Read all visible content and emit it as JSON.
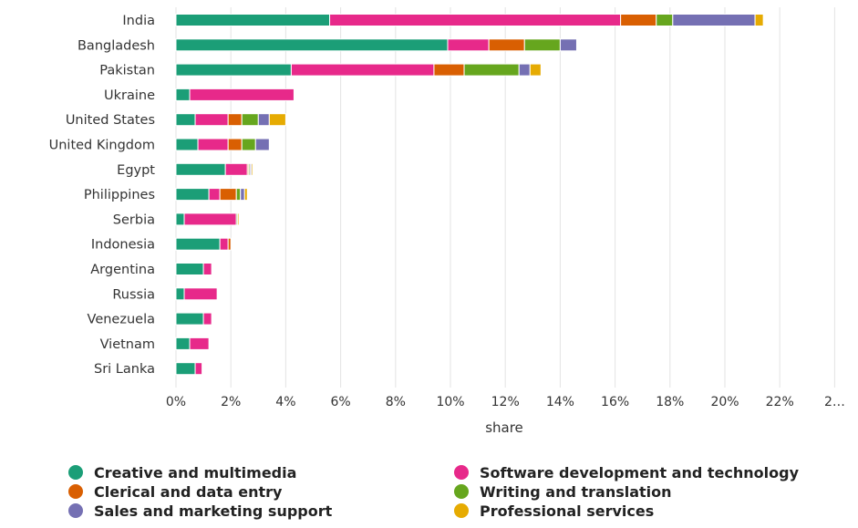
{
  "chart_data": {
    "type": "bar",
    "orientation": "horizontal",
    "stacked": true,
    "xlabel": "share",
    "ylabel": "",
    "xlim": [
      0,
      24
    ],
    "x_ticks": [
      "0%",
      "2%",
      "4%",
      "6%",
      "8%",
      "10%",
      "12%",
      "14%",
      "16%",
      "18%",
      "20%",
      "22%",
      "2…"
    ],
    "grid": true,
    "legend_position": "bottom",
    "categories": [
      "India",
      "Bangladesh",
      "Pakistan",
      "Ukraine",
      "United States",
      "United Kingdom",
      "Egypt",
      "Philippines",
      "Serbia",
      "Indonesia",
      "Argentina",
      "Russia",
      "Venezuela",
      "Vietnam",
      "Sri Lanka"
    ],
    "series": [
      {
        "name": "Creative and multimedia",
        "color": "#1b9e77",
        "values": [
          5.6,
          9.9,
          4.2,
          0.5,
          0.7,
          0.8,
          1.8,
          1.2,
          0.3,
          1.6,
          1.0,
          0.3,
          1.0,
          0.5,
          0.7
        ]
      },
      {
        "name": "Software development and technology",
        "color": "#e7298a",
        "values": [
          10.6,
          1.5,
          5.2,
          3.8,
          1.2,
          1.1,
          0.8,
          0.4,
          1.9,
          0.3,
          0.3,
          1.2,
          0.3,
          0.7,
          0.25
        ]
      },
      {
        "name": "Clerical and data entry",
        "color": "#d95f02",
        "values": [
          1.3,
          1.3,
          1.1,
          0,
          0.5,
          0.5,
          0.05,
          0.6,
          0,
          0.1,
          0,
          0,
          0,
          0,
          0
        ]
      },
      {
        "name": "Writing and translation",
        "color": "#66a61e",
        "values": [
          0.6,
          1.3,
          2.0,
          0,
          0.6,
          0.5,
          0.05,
          0.15,
          0.05,
          0,
          0,
          0,
          0,
          0,
          0
        ]
      },
      {
        "name": "Sales and marketing support",
        "color": "#7570b3",
        "values": [
          3.0,
          0.6,
          0.4,
          0,
          0.4,
          0.5,
          0.05,
          0.15,
          0,
          0,
          0,
          0,
          0,
          0,
          0
        ]
      },
      {
        "name": "Professional services",
        "color": "#e6ab02",
        "values": [
          0.3,
          0,
          0.4,
          0,
          0.6,
          0,
          0.05,
          0.1,
          0.05,
          0,
          0,
          0,
          0,
          0,
          0
        ]
      }
    ]
  }
}
